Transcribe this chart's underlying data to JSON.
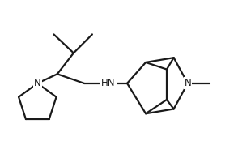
{
  "line_color": "#1a1a1a",
  "bg_color": "#ffffff",
  "line_width": 1.6,
  "fig_width": 2.94,
  "fig_height": 1.74,
  "dpi": 100,
  "xlim": [
    0,
    10
  ],
  "ylim": [
    0,
    6
  ]
}
